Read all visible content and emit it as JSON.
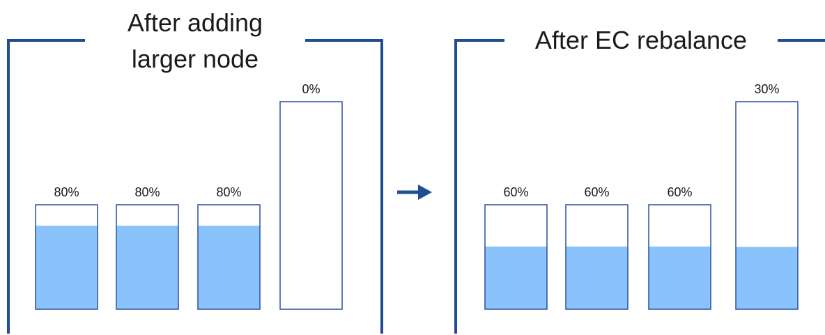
{
  "colors": {
    "frame": "#1f4e96",
    "node_outline": "#2b4ea2",
    "fill": "#8ac2fb",
    "arrow": "#1f4e96"
  },
  "arrow_icon": "right-arrow-icon",
  "panels": [
    {
      "title_lines": [
        "After adding",
        "larger node"
      ],
      "nodes": [
        {
          "label": "80%",
          "fill_fraction": 0.8
        },
        {
          "label": "80%",
          "fill_fraction": 0.8
        },
        {
          "label": "80%",
          "fill_fraction": 0.8
        },
        {
          "label": "0%",
          "fill_fraction": 0.0
        }
      ]
    },
    {
      "title_lines": [
        "After EC rebalance"
      ],
      "nodes": [
        {
          "label": "60%",
          "fill_fraction": 0.6
        },
        {
          "label": "60%",
          "fill_fraction": 0.6
        },
        {
          "label": "60%",
          "fill_fraction": 0.6
        },
        {
          "label": "30%",
          "fill_fraction": 0.3
        }
      ]
    }
  ]
}
